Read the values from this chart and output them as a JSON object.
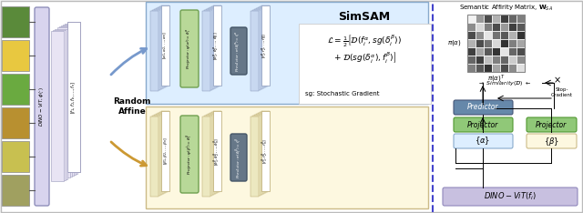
{
  "title": "SimSAM",
  "bg_color": "#f2f2f2",
  "img_colors": [
    "#5a8a3a",
    "#e8c840",
    "#6aaa40",
    "#b89030",
    "#c8c050",
    "#a0a060"
  ],
  "matrix_vals": [
    [
      0.95,
      0.6,
      0.3,
      0.7,
      0.25,
      0.4,
      0.5
    ],
    [
      0.55,
      0.85,
      0.5,
      0.3,
      0.6,
      0.25,
      0.35
    ],
    [
      0.3,
      0.55,
      0.9,
      0.45,
      0.35,
      0.7,
      0.2
    ],
    [
      0.7,
      0.3,
      0.45,
      0.85,
      0.2,
      0.5,
      0.65
    ],
    [
      0.25,
      0.65,
      0.35,
      0.2,
      0.9,
      0.4,
      0.3
    ],
    [
      0.4,
      0.25,
      0.75,
      0.5,
      0.4,
      0.8,
      0.55
    ],
    [
      0.5,
      0.35,
      0.2,
      0.65,
      0.3,
      0.55,
      0.88
    ]
  ],
  "dino_color": "#d8d4ee",
  "dino_edge": "#9090bb",
  "alpha_bg": "#ddeeff",
  "alpha_edge": "#88aacc",
  "beta_bg": "#fdf8e0",
  "beta_edge": "#ccbb88",
  "proj_color": "#b8d898",
  "proj_edge": "#70a050",
  "pred_color": "#667788",
  "pred_edge": "#445566",
  "right_pred_color": "#6688aa",
  "right_pred_edge": "#445577",
  "right_proj_color": "#90c878",
  "right_proj_edge": "#509830",
  "alpha_box_color": "#ddeeff",
  "alpha_box_edge": "#88aacc",
  "beta_box_color": "#fdf8e0",
  "beta_box_edge": "#ccbb88",
  "dino_bottom_color": "#c8c0e0",
  "dino_bottom_edge": "#9088bb",
  "sep_color": "#4444cc",
  "arrow_blue": "#7799cc",
  "arrow_gold": "#cc9933"
}
